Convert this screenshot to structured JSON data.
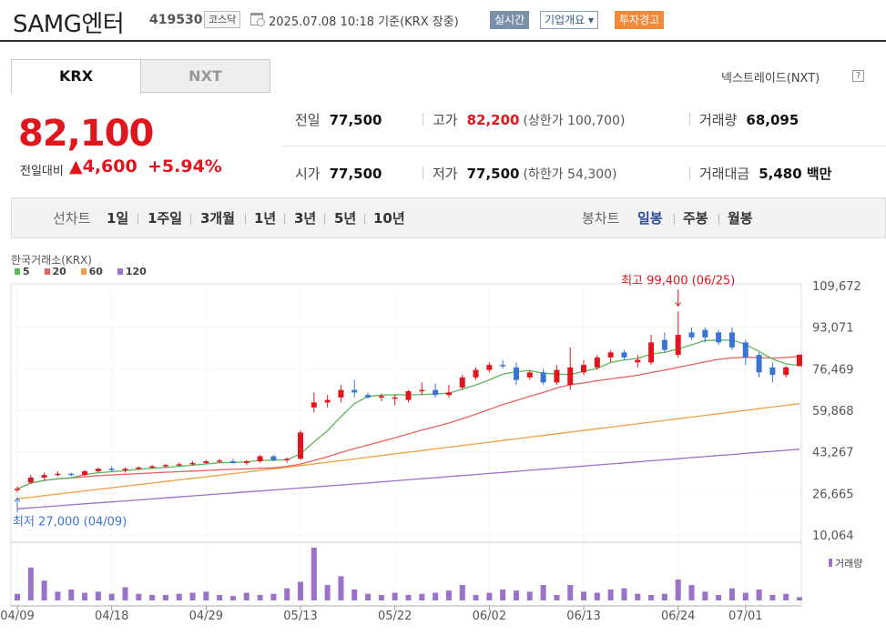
{
  "header": {
    "name": "SAMG엔터",
    "code": "419530",
    "market": "코스닥",
    "datetime": "2025.07.08 10:18  기준(KRX 장중)",
    "realtime": "실시간",
    "profile": "기업개요 ▾",
    "warning": "투자경고"
  },
  "tabs": {
    "krx": "KRX",
    "nxt": "NXT",
    "nxt_link": "넥스트레이드(NXT)",
    "help": "?"
  },
  "price": {
    "current": "82,100",
    "change_label": "전일대비",
    "change": "▲4,600",
    "change_pct": "+5.94%"
  },
  "stats": {
    "prev_label": "전일",
    "prev": "77,500",
    "high_label": "고가",
    "high": "82,200",
    "high_sub": "(상한가 100,700)",
    "volume_label": "거래량",
    "volume": "68,095",
    "open_label": "시가",
    "open": "77,500",
    "low_label": "저가",
    "low": "77,500",
    "low_sub": "(하한가 54,300)",
    "amount_label": "거래대금",
    "amount": "5,480 백만"
  },
  "toolbar": {
    "line_label": "선차트",
    "line_periods": [
      "1일",
      "1주일",
      "3개월",
      "1년",
      "3년",
      "5년",
      "10년"
    ],
    "candle_label": "봉차트",
    "candle_periods": [
      "일봉",
      "주봉",
      "월봉"
    ]
  },
  "colors": {
    "up": "#e0161e",
    "down": "#3a73d6",
    "ma5": "#5cb85c",
    "ma20": "#e86060",
    "ma60": "#f0a040",
    "ma120": "#9b72c9",
    "volume": "#9b72c9"
  },
  "chart_data": {
    "type": "candlestick",
    "title": "한국거래소(KRX)",
    "legend": [
      "5",
      "20",
      "60",
      "120"
    ],
    "y_ticks": [
      "109,672",
      "93,071",
      "76,469",
      "59,868",
      "43,267",
      "26,665",
      "10,064"
    ],
    "ylim": [
      10064,
      109672
    ],
    "x_ticks": [
      {
        "label": "04/09",
        "i": 0
      },
      {
        "label": "04/18",
        "i": 7
      },
      {
        "label": "04/29",
        "i": 14
      },
      {
        "label": "05/13",
        "i": 21
      },
      {
        "label": "05/22",
        "i": 28
      },
      {
        "label": "06/02",
        "i": 35
      },
      {
        "label": "06/13",
        "i": 42
      },
      {
        "label": "06/24",
        "i": 49
      },
      {
        "label": "07/01",
        "i": 54
      }
    ],
    "annotations": {
      "high": "최고 99,400 (06/25)",
      "high_i": 49,
      "high_value": 99400,
      "low": "최저 27,000 (04/09)",
      "low_i": 0,
      "low_value": 27000
    },
    "volume_legend": "거래량",
    "candles": [
      [
        28000,
        29500,
        27000,
        28500
      ],
      [
        31000,
        34000,
        30500,
        33000
      ],
      [
        33000,
        35000,
        32000,
        34000
      ],
      [
        34000,
        35500,
        33500,
        34500
      ],
      [
        34500,
        35000,
        33500,
        34200
      ],
      [
        34000,
        36000,
        33500,
        35500
      ],
      [
        35500,
        37000,
        35000,
        36500
      ],
      [
        36500,
        37500,
        35500,
        36000
      ],
      [
        36000,
        37000,
        35000,
        36500
      ],
      [
        36500,
        37500,
        36000,
        37000
      ],
      [
        37000,
        38000,
        36500,
        37500
      ],
      [
        37500,
        38500,
        37000,
        38000
      ],
      [
        38000,
        39000,
        37500,
        38300
      ],
      [
        38300,
        39500,
        37800,
        38800
      ],
      [
        38800,
        40000,
        38300,
        39500
      ],
      [
        39500,
        40500,
        39000,
        39800
      ],
      [
        39500,
        40500,
        38500,
        38800
      ],
      [
        38800,
        40000,
        38000,
        39500
      ],
      [
        39500,
        42000,
        39000,
        41500
      ],
      [
        41500,
        42000,
        39500,
        40000
      ],
      [
        40000,
        41000,
        39000,
        40500
      ],
      [
        40500,
        52000,
        40000,
        51000
      ],
      [
        61000,
        67000,
        59000,
        63000
      ],
      [
        63000,
        66000,
        61000,
        64000
      ],
      [
        65000,
        70000,
        63000,
        68000
      ],
      [
        68000,
        72000,
        65000,
        67000
      ],
      [
        66000,
        67000,
        64500,
        65000
      ],
      [
        65000,
        66500,
        63500,
        65500
      ],
      [
        64500,
        66000,
        62000,
        65000
      ],
      [
        64000,
        68000,
        63000,
        67500
      ],
      [
        67500,
        71000,
        66000,
        68000
      ],
      [
        68000,
        70500,
        65000,
        66000
      ],
      [
        66000,
        70000,
        65000,
        67000
      ],
      [
        69000,
        74000,
        68000,
        73000
      ],
      [
        73000,
        77000,
        72000,
        76000
      ],
      [
        76000,
        79000,
        75000,
        78000
      ],
      [
        78000,
        80000,
        76500,
        77500
      ],
      [
        77000,
        79000,
        70000,
        72000
      ],
      [
        73000,
        76000,
        72000,
        75000
      ],
      [
        75000,
        76500,
        70000,
        71000
      ],
      [
        71000,
        78000,
        70000,
        76000
      ],
      [
        70000,
        85000,
        68000,
        77000
      ],
      [
        75000,
        80000,
        74000,
        78000
      ],
      [
        77000,
        82000,
        76000,
        81000
      ],
      [
        81000,
        84000,
        79000,
        83000
      ],
      [
        83000,
        84000,
        80000,
        81000
      ],
      [
        79000,
        82000,
        77000,
        80000
      ],
      [
        79000,
        90000,
        78000,
        87000
      ],
      [
        88000,
        91000,
        83000,
        84000
      ],
      [
        82000,
        99400,
        81000,
        90000
      ],
      [
        91000,
        93000,
        88000,
        89000
      ],
      [
        92000,
        93000,
        87000,
        89000
      ],
      [
        91000,
        92000,
        86000,
        87000
      ],
      [
        91000,
        93000,
        84000,
        85000
      ],
      [
        87000,
        88000,
        78000,
        81000
      ],
      [
        82000,
        83000,
        73000,
        75000
      ],
      [
        77000,
        79000,
        71000,
        74000
      ],
      [
        74000,
        77500,
        73000,
        77000
      ],
      [
        77500,
        82200,
        77500,
        82100
      ]
    ],
    "volume": [
      6,
      30,
      18,
      8,
      10,
      7,
      8,
      6,
      12,
      6,
      5,
      5,
      6,
      7,
      8,
      5,
      4,
      7,
      5,
      6,
      11,
      17,
      48,
      14,
      22,
      10,
      6,
      5,
      7,
      5,
      6,
      7,
      9,
      14,
      5,
      7,
      10,
      9,
      8,
      14,
      5,
      14,
      8,
      7,
      10,
      11,
      6,
      5,
      6,
      19,
      14,
      8,
      5,
      11,
      7,
      10,
      5,
      6,
      3
    ]
  }
}
